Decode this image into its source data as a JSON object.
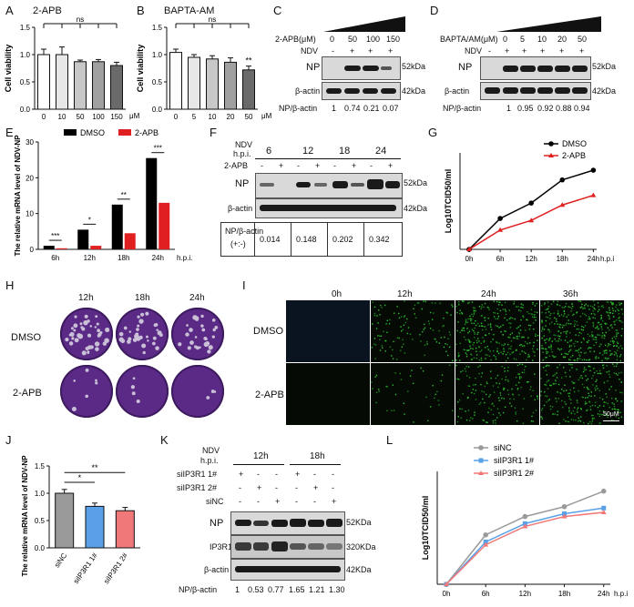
{
  "panels": {
    "A": {
      "letter": "A",
      "title": "2-APB",
      "ylabel": "Cell viability",
      "unit": "μM",
      "sig": "ns",
      "categories": [
        "0",
        "10",
        "50",
        "100",
        "150"
      ],
      "values": [
        1.0,
        1.0,
        0.87,
        0.87,
        0.8
      ],
      "errors": [
        0.1,
        0.14,
        0.03,
        0.04,
        0.06
      ],
      "colors": [
        "#ffffff",
        "#e8e8e8",
        "#c8c8c8",
        "#a0a0a0",
        "#6a6a6a"
      ],
      "ylim": [
        0,
        1.5
      ],
      "yticks": [
        "0.0",
        "0.5",
        "1.0",
        "1.5"
      ]
    },
    "B": {
      "letter": "B",
      "title": "BAPTA-AM",
      "ylabel": "Cell viability",
      "unit": "μM",
      "sig": "ns",
      "star": "**",
      "categories": [
        "0",
        "5",
        "10",
        "20",
        "50"
      ],
      "values": [
        1.04,
        0.95,
        0.92,
        0.86,
        0.72
      ],
      "errors": [
        0.06,
        0.05,
        0.06,
        0.08,
        0.07
      ],
      "colors": [
        "#ffffff",
        "#e8e8e8",
        "#c8c8c8",
        "#a0a0a0",
        "#6a6a6a"
      ],
      "ylim": [
        0,
        1.5
      ],
      "yticks": [
        "0.0",
        "0.5",
        "1.0",
        "1.5"
      ]
    },
    "C": {
      "letter": "C",
      "treat": "2-APB(μM)",
      "doses": [
        "0",
        "50",
        "100",
        "150"
      ],
      "ndv_label": "NDV",
      "ndv": [
        "-",
        "+",
        "+",
        "+",
        "+"
      ],
      "np": "NP",
      "actin": "β-actin",
      "kda1": "52kDa",
      "kda2": "42kDa",
      "ratio_label": "NP/β-actin",
      "ratios": [
        "1",
        "0.74",
        "0.21",
        "0.07"
      ]
    },
    "D": {
      "letter": "D",
      "treat": "BAPTA/AM(μM)",
      "doses": [
        "0",
        "5",
        "10",
        "20",
        "50"
      ],
      "ndv_label": "NDV",
      "ndv": [
        "-",
        "+",
        "+",
        "+",
        "+",
        "+"
      ],
      "np": "NP",
      "actin": "β-actin",
      "kda1": "52kDa",
      "kda2": "42kDa",
      "ratio_label": "NP/β-actin",
      "ratios": [
        "1",
        "0.95",
        "0.92",
        "0.88",
        "0.94"
      ]
    },
    "E": {
      "letter": "E",
      "ylabel": "The relative mRNA level of NDV-NP",
      "xunit": "h.p.i.",
      "legend": [
        "DMSO",
        "2-APB"
      ],
      "categories": [
        "6h",
        "12h",
        "18h",
        "24h"
      ],
      "dmso": [
        1.0,
        5.5,
        12.5,
        25.5
      ],
      "apb": [
        0.3,
        1.0,
        4.5,
        13.0
      ],
      "sig": [
        "***",
        "*",
        "**",
        "***"
      ],
      "ylim": [
        0,
        30
      ],
      "yticks": [
        "0",
        "10",
        "20",
        "30"
      ],
      "colors": [
        "#000000",
        "#e02020"
      ]
    },
    "F": {
      "letter": "F",
      "ndv": "NDV",
      "hpi": "h.p.i.",
      "times": [
        "6",
        "12",
        "18",
        "24"
      ],
      "apb_label": "2-APB",
      "apb": [
        "-",
        "+",
        "-",
        "+",
        "-",
        "+",
        "-",
        "+"
      ],
      "np": "NP",
      "actin": "β-actin",
      "kda1": "52kDa",
      "kda2": "42kDa",
      "ratio_label": "NP/β-actin",
      "ratio_sub": "(+:-)",
      "ratios": [
        "0.014",
        "0.148",
        "0.202",
        "0.342"
      ]
    },
    "G": {
      "letter": "G",
      "ylabel": "Log10TCID50/ml",
      "xunit": "h.p.i",
      "legend": [
        "DMSO",
        "2-APB"
      ],
      "categories": [
        "0h",
        "6h",
        "12h",
        "18h",
        "24h"
      ],
      "dmso": [
        2.0,
        3.6,
        4.4,
        5.6,
        6.1
      ],
      "apb": [
        2.0,
        3.0,
        3.5,
        4.3,
        4.8
      ],
      "ylim": [
        2,
        7
      ],
      "colors": [
        "#000000",
        "#e02020"
      ]
    },
    "H": {
      "letter": "H",
      "cols": [
        "12h",
        "18h",
        "24h"
      ],
      "rows": [
        "DMSO",
        "2-APB"
      ]
    },
    "I": {
      "letter": "I",
      "cols": [
        "0h",
        "12h",
        "24h",
        "36h"
      ],
      "rows": [
        "DMSO",
        "2-APB"
      ],
      "scale": "50μM"
    },
    "J": {
      "letter": "J",
      "ylabel": "The relative mRNA level of NDV-NP",
      "categories": [
        "siNC",
        "siIP3R1 1#",
        "siIP3R1 2#"
      ],
      "values": [
        1.0,
        0.76,
        0.68
      ],
      "errors": [
        0.07,
        0.06,
        0.06
      ],
      "sig": [
        "*",
        "**"
      ],
      "colors": [
        "#9a9a9a",
        "#5aa0e8",
        "#f07878"
      ],
      "ylim": [
        0,
        1.5
      ],
      "yticks": [
        "0.0",
        "0.5",
        "1.0",
        "1.5"
      ]
    },
    "K": {
      "letter": "K",
      "ndv": "NDV",
      "hpi": "h.p.i.",
      "times": [
        "12h",
        "18h"
      ],
      "rows": [
        "siIP3R1 1#",
        "siIP3R1 2#",
        "siNC"
      ],
      "signs": [
        [
          "+",
          "-",
          "-",
          "+",
          "-",
          "-"
        ],
        [
          "-",
          "+",
          "-",
          "-",
          "+",
          "-"
        ],
        [
          "-",
          "-",
          "+",
          "-",
          "-",
          "+"
        ]
      ],
      "np": "NP",
      "ip3r": "IP3R1",
      "actin": "β-actin",
      "kda1": "52KDa",
      "kda2": "320KDa",
      "kda3": "42KDa",
      "ratio_label": "NP/β-actin",
      "ratios": [
        "1",
        "0.53",
        "0.77",
        "1.65",
        "1.21",
        "1.30"
      ]
    },
    "L": {
      "letter": "L",
      "ylabel": "Log10TCID50/ml",
      "xunit": "h.p.i",
      "legend": [
        "siNC",
        "siIP3R1 1#",
        "siIP3R1 2#"
      ],
      "categories": [
        "0h",
        "6h",
        "12h",
        "18h",
        "24h"
      ],
      "sinc": [
        0,
        3.5,
        4.8,
        5.5,
        6.6
      ],
      "si1": [
        0,
        3.0,
        4.3,
        5.0,
        5.4
      ],
      "si2": [
        0,
        2.8,
        4.1,
        4.8,
        5.1
      ],
      "ylim": [
        0,
        8
      ],
      "colors": [
        "#9a9a9a",
        "#5aa0e8",
        "#f07878"
      ]
    }
  }
}
